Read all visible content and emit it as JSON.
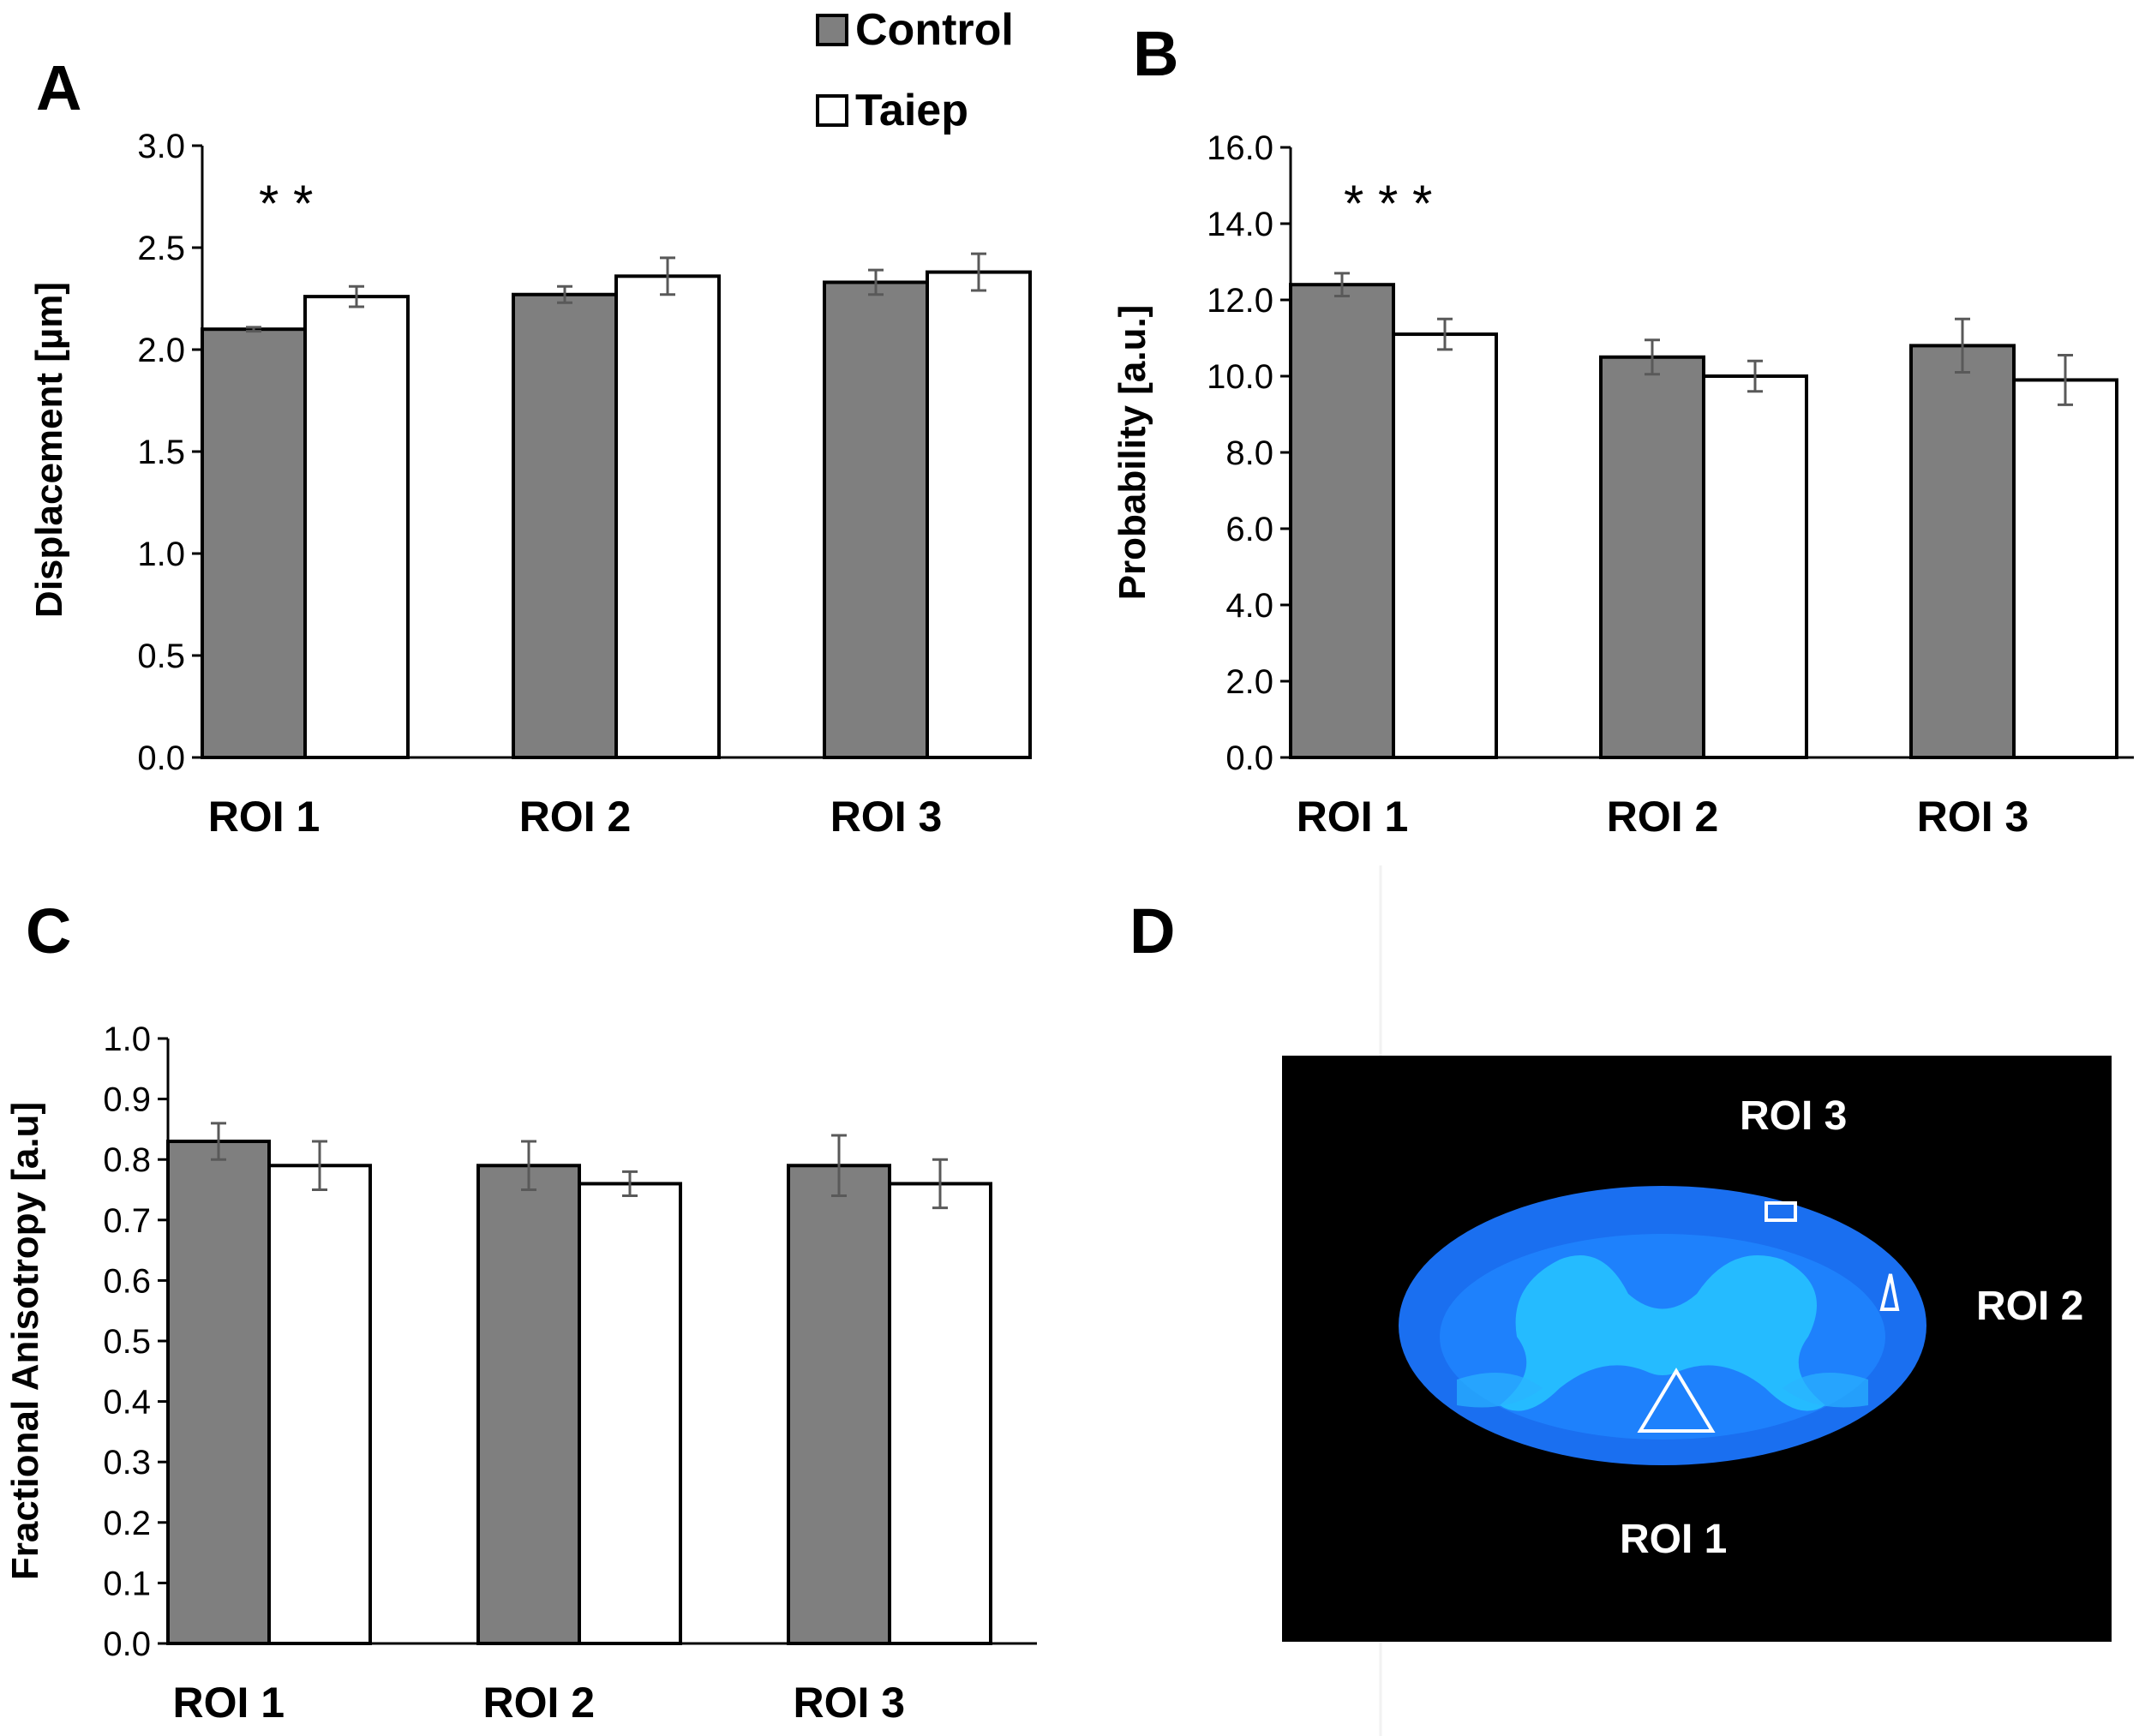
{
  "legend": [
    {
      "name": "Control",
      "color": "#7f7f7f"
    },
    {
      "name": "Taiep",
      "color": "#ffffff"
    }
  ],
  "chart_data": [
    {
      "panel": "A",
      "type": "bar",
      "categories": [
        "ROI 1",
        "ROI 2",
        "ROI 3"
      ],
      "series": [
        {
          "name": "Control",
          "values": [
            2.1,
            2.27,
            2.33
          ],
          "errors": [
            0.01,
            0.04,
            0.06
          ]
        },
        {
          "name": "Taiep",
          "values": [
            2.26,
            2.36,
            2.38
          ],
          "errors": [
            0.05,
            0.09,
            0.09
          ]
        }
      ],
      "ylabel": "Displacement [µm]",
      "ylim": [
        0,
        3.0
      ],
      "ticks": [
        "0.0",
        "0.5",
        "1.0",
        "1.5",
        "2.0",
        "2.5",
        "3.0"
      ],
      "significance": "* *"
    },
    {
      "panel": "B",
      "type": "bar",
      "categories": [
        "ROI 1",
        "ROI 2",
        "ROI 3"
      ],
      "series": [
        {
          "name": "Control",
          "values": [
            12.4,
            10.5,
            10.8
          ],
          "errors": [
            0.3,
            0.45,
            0.7
          ]
        },
        {
          "name": "Taiep",
          "values": [
            11.1,
            10.0,
            9.9
          ],
          "errors": [
            0.4,
            0.4,
            0.65
          ]
        }
      ],
      "ylabel": "Probability [a.u.]",
      "ylim": [
        0,
        16.0
      ],
      "ticks": [
        "0.0",
        "2.0",
        "4.0",
        "6.0",
        "8.0",
        "10.0",
        "12.0",
        "14.0",
        "16.0"
      ],
      "significance": "* * *"
    },
    {
      "panel": "C",
      "type": "bar",
      "categories": [
        "ROI 1",
        "ROI 2",
        "ROI 3"
      ],
      "series": [
        {
          "name": "Control",
          "values": [
            0.83,
            0.79,
            0.79
          ],
          "errors": [
            0.03,
            0.04,
            0.05
          ]
        },
        {
          "name": "Taiep",
          "values": [
            0.79,
            0.76,
            0.76
          ],
          "errors": [
            0.04,
            0.02,
            0.04
          ]
        }
      ],
      "ylabel": "Fractional Anisotropy [a.u]",
      "ylim": [
        0,
        1.0
      ],
      "ticks": [
        "0.0",
        "0.1",
        "0.2",
        "0.3",
        "0.4",
        "0.5",
        "0.6",
        "0.7",
        "0.8",
        "0.9",
        "1.0"
      ]
    }
  ],
  "panel_d": {
    "letter": "D",
    "roi_labels": [
      "ROI 1",
      "ROI 2",
      "ROI 3"
    ]
  }
}
